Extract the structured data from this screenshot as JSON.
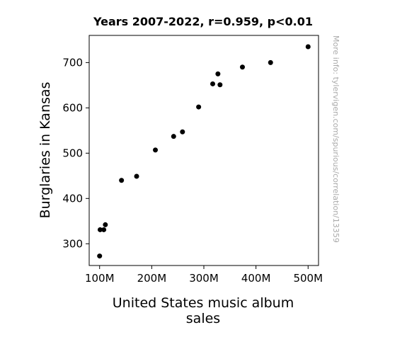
{
  "chart_data": {
    "type": "scatter",
    "title": "Years 2007-2022, r=0.959, p<0.01",
    "xlabel_lines": [
      "United States music album",
      "sales"
    ],
    "ylabel": "Burglaries in Kansas",
    "watermark": "More info: tylervigen.com/spurious/correlation/13359",
    "xlim": [
      80,
      520
    ],
    "ylim": [
      252,
      760
    ],
    "x_ticks": [
      {
        "value": 100,
        "label": "100M"
      },
      {
        "value": 200,
        "label": "200M"
      },
      {
        "value": 300,
        "label": "300M"
      },
      {
        "value": 400,
        "label": "400M"
      },
      {
        "value": 500,
        "label": "500M"
      }
    ],
    "y_ticks": [
      {
        "value": 300,
        "label": "300"
      },
      {
        "value": 400,
        "label": "400"
      },
      {
        "value": 500,
        "label": "500"
      },
      {
        "value": 600,
        "label": "600"
      },
      {
        "value": 700,
        "label": "700"
      }
    ],
    "grid": false,
    "point_color": "#000000",
    "points": [
      {
        "x": 500,
        "y": 735
      },
      {
        "x": 428,
        "y": 700
      },
      {
        "x": 374,
        "y": 690
      },
      {
        "x": 327,
        "y": 675
      },
      {
        "x": 317,
        "y": 653
      },
      {
        "x": 331,
        "y": 651
      },
      {
        "x": 290,
        "y": 602
      },
      {
        "x": 259,
        "y": 547
      },
      {
        "x": 242,
        "y": 537
      },
      {
        "x": 207,
        "y": 507
      },
      {
        "x": 171,
        "y": 449
      },
      {
        "x": 142,
        "y": 440
      },
      {
        "x": 111,
        "y": 342
      },
      {
        "x": 101,
        "y": 331
      },
      {
        "x": 108,
        "y": 331
      },
      {
        "x": 100,
        "y": 273
      }
    ]
  }
}
